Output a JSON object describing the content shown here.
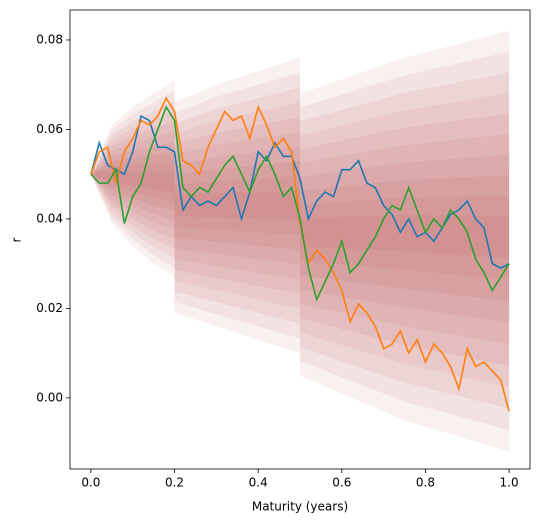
{
  "chart_data": {
    "type": "line",
    "xlabel": "Maturity (years)",
    "ylabel": "r",
    "xlim": [
      -0.05,
      1.05
    ],
    "ylim": [
      -0.0159,
      0.0867
    ],
    "xticks": [
      {
        "value": 0,
        "label": "0.0"
      },
      {
        "value": 0.2,
        "label": "0.2"
      },
      {
        "value": 0.4,
        "label": "0.4"
      },
      {
        "value": 0.6,
        "label": "0.6"
      },
      {
        "value": 0.8,
        "label": "0.8"
      },
      {
        "value": 1,
        "label": "1.0"
      }
    ],
    "yticks": [
      {
        "value": 0,
        "label": "0.00"
      },
      {
        "value": 0.02,
        "label": "0.02"
      },
      {
        "value": 0.04,
        "label": "0.04"
      },
      {
        "value": 0.06,
        "label": "0.06"
      },
      {
        "value": 0.08,
        "label": "0.08"
      }
    ],
    "fan_color": "#b04545",
    "fan": [
      {
        "x": [
          0,
          0.05,
          0.1,
          0.15,
          0.2
        ],
        "center": [
          0.05,
          0.0495,
          0.049,
          0.0485,
          0.048
        ],
        "upper": [
          0.05,
          0.061,
          0.065,
          0.068,
          0.071
        ],
        "lower": [
          0.05,
          0.039,
          0.034,
          0.03,
          0.027
        ]
      },
      {
        "x": [
          0.2,
          0.3,
          0.4,
          0.5
        ],
        "center": [
          0.043,
          0.043,
          0.043,
          0.043
        ],
        "upper": [
          0.066,
          0.07,
          0.073,
          0.076
        ],
        "lower": [
          0.019,
          0.016,
          0.013,
          0.01
        ]
      },
      {
        "x": [
          0.5,
          0.75,
          1.0
        ],
        "center": [
          0.037,
          0.037,
          0.036
        ],
        "upper": [
          0.068,
          0.076,
          0.082
        ],
        "lower": [
          0.005,
          -0.005,
          -0.012
        ]
      }
    ],
    "x": [
      0,
      0.02,
      0.04,
      0.06,
      0.08,
      0.1,
      0.12,
      0.14,
      0.16,
      0.18,
      0.2,
      0.22,
      0.24,
      0.26,
      0.28,
      0.3,
      0.32,
      0.34,
      0.36,
      0.38,
      0.4,
      0.42,
      0.44,
      0.46,
      0.48,
      0.5,
      0.52,
      0.54,
      0.56,
      0.58,
      0.6,
      0.62,
      0.64,
      0.66,
      0.68,
      0.7,
      0.72,
      0.74,
      0.76,
      0.78,
      0.8,
      0.82,
      0.84,
      0.86,
      0.88,
      0.9,
      0.92,
      0.94,
      0.96,
      0.98,
      1.0
    ],
    "series": [
      {
        "color": "#1f77b4",
        "values": [
          0.05,
          0.057,
          0.052,
          0.051,
          0.05,
          0.055,
          0.063,
          0.062,
          0.056,
          0.056,
          0.055,
          0.042,
          0.045,
          0.043,
          0.044,
          0.043,
          0.045,
          0.047,
          0.04,
          0.046,
          0.055,
          0.053,
          0.057,
          0.054,
          0.054,
          0.049,
          0.04,
          0.044,
          0.046,
          0.045,
          0.051,
          0.051,
          0.053,
          0.048,
          0.047,
          0.043,
          0.041,
          0.037,
          0.04,
          0.036,
          0.037,
          0.035,
          0.038,
          0.041,
          0.042,
          0.044,
          0.04,
          0.038,
          0.03,
          0.029,
          0.03
        ]
      },
      {
        "color": "#ff7f0e",
        "values": [
          0.05,
          0.055,
          0.056,
          0.048,
          0.055,
          0.058,
          0.062,
          0.061,
          0.063,
          0.067,
          0.064,
          0.053,
          0.052,
          0.05,
          0.056,
          0.06,
          0.064,
          0.062,
          0.063,
          0.058,
          0.065,
          0.061,
          0.056,
          0.058,
          0.055,
          0.039,
          0.03,
          0.033,
          0.031,
          0.028,
          0.024,
          0.017,
          0.021,
          0.019,
          0.016,
          0.011,
          0.012,
          0.015,
          0.01,
          0.013,
          0.008,
          0.012,
          0.01,
          0.007,
          0.002,
          0.011,
          0.007,
          0.008,
          0.006,
          0.004,
          -0.003
        ]
      },
      {
        "color": "#2ca02c",
        "values": [
          0.05,
          0.048,
          0.048,
          0.051,
          0.039,
          0.045,
          0.048,
          0.055,
          0.06,
          0.065,
          0.062,
          0.047,
          0.045,
          0.047,
          0.046,
          0.049,
          0.052,
          0.054,
          0.05,
          0.046,
          0.051,
          0.054,
          0.05,
          0.045,
          0.047,
          0.04,
          0.029,
          0.022,
          0.026,
          0.03,
          0.035,
          0.028,
          0.03,
          0.033,
          0.036,
          0.04,
          0.043,
          0.042,
          0.047,
          0.042,
          0.037,
          0.04,
          0.038,
          0.042,
          0.04,
          0.037,
          0.031,
          0.028,
          0.024,
          0.027,
          0.03
        ]
      }
    ]
  }
}
